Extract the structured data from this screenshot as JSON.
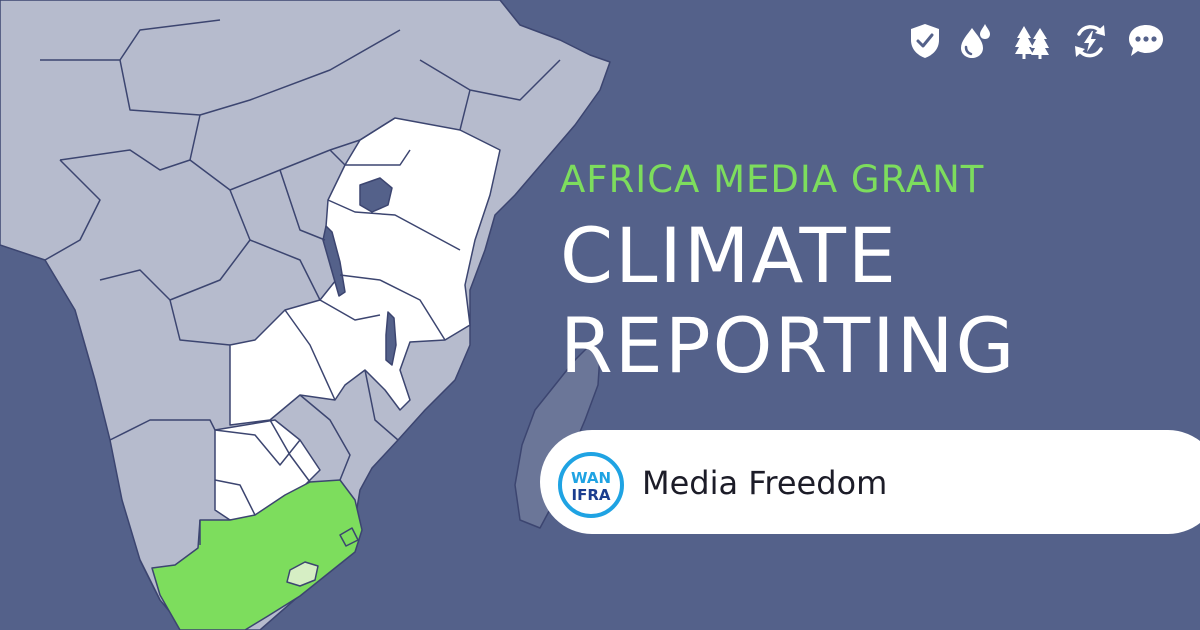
{
  "colors": {
    "background": "#54618a",
    "land_other": "#b6bbcd",
    "land_highlight": "#ffffff",
    "land_south_africa": "#7ddd5d",
    "lesotho": "#d6eec4",
    "madagascar": "#6b7698",
    "border": "#3c4570",
    "icon": "#ffffff",
    "kicker": "#7ddd5d",
    "title": "#ffffff",
    "pill": "#ffffff",
    "label": "#1c1c28",
    "logo_primary": "#1fa3e3",
    "logo_dark": "#1b3d8f"
  },
  "icons": [
    "shield-check-icon",
    "water-drops-icon",
    "trees-icon",
    "renewable-energy-icon",
    "chat-bubble-icon"
  ],
  "headline": {
    "kicker": "AFRICA MEDIA GRANT",
    "title_line_1": "CLIMATE",
    "title_line_2": "REPORTING"
  },
  "logo": {
    "top_text": "WAN",
    "bottom_text": "IFRA"
  },
  "label": "Media Freedom"
}
